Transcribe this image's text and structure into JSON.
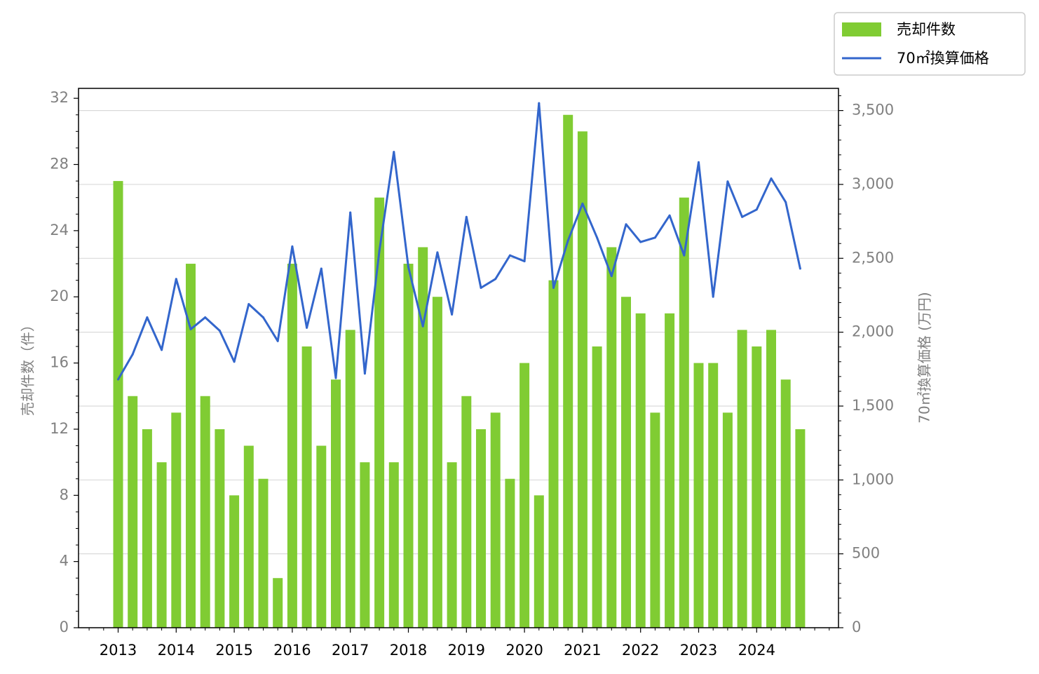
{
  "chart_data": {
    "type": "bar+line",
    "xlabel": "",
    "y_left_label": "売却件数（件）",
    "y_right_label": "70㎡換算価格 (万円)",
    "y_left_lim": [
      0,
      32.6
    ],
    "y_left_ticks": [
      0,
      4,
      8,
      12,
      16,
      20,
      24,
      28,
      32
    ],
    "y_left_tick_labels": [
      "0",
      "4",
      "8",
      "12",
      "16",
      "20",
      "24",
      "28",
      "32"
    ],
    "y_right_lim": [
      0,
      3650
    ],
    "y_right_ticks": [
      0,
      500,
      1000,
      1500,
      2000,
      2500,
      3000,
      3500
    ],
    "y_right_tick_labels": [
      "0",
      "500",
      "1,000",
      "1,500",
      "2,000",
      "2,500",
      "3,000",
      "3,500"
    ],
    "x_year_labels": [
      "2013",
      "2014",
      "2015",
      "2016",
      "2017",
      "2018",
      "2019",
      "2020",
      "2021",
      "2022",
      "2023",
      "2024"
    ],
    "grid": "horizontal (right axis)",
    "legend_position": "top-right, outside plot",
    "series": [
      {
        "name": "売却件数",
        "kind": "bar",
        "axis": "left",
        "color": "#80cc33",
        "values": [
          27,
          14,
          12,
          10,
          13,
          22,
          14,
          12,
          8,
          11,
          9,
          3,
          22,
          17,
          11,
          15,
          18,
          10,
          26,
          10,
          22,
          23,
          20,
          10,
          14,
          12,
          13,
          9,
          16,
          8,
          21,
          31,
          30,
          17,
          23,
          20,
          19,
          13,
          19,
          26,
          16,
          16,
          13,
          18,
          17,
          18,
          15,
          12
        ]
      },
      {
        "name": "70㎡換算価格",
        "kind": "line",
        "axis": "right",
        "color": "#3366cc",
        "values": [
          1680,
          1850,
          2100,
          1880,
          2360,
          2020,
          2100,
          2010,
          1800,
          2190,
          2100,
          1940,
          2580,
          2030,
          2430,
          1690,
          2810,
          1720,
          2550,
          3220,
          2440,
          2040,
          2540,
          2120,
          2780,
          2300,
          2360,
          2520,
          2480,
          3550,
          2300,
          2620,
          2870,
          2640,
          2380,
          2730,
          2610,
          2640,
          2790,
          2520,
          3150,
          2240,
          3020,
          2780,
          2830,
          3040,
          2880,
          2430
        ]
      }
    ]
  }
}
